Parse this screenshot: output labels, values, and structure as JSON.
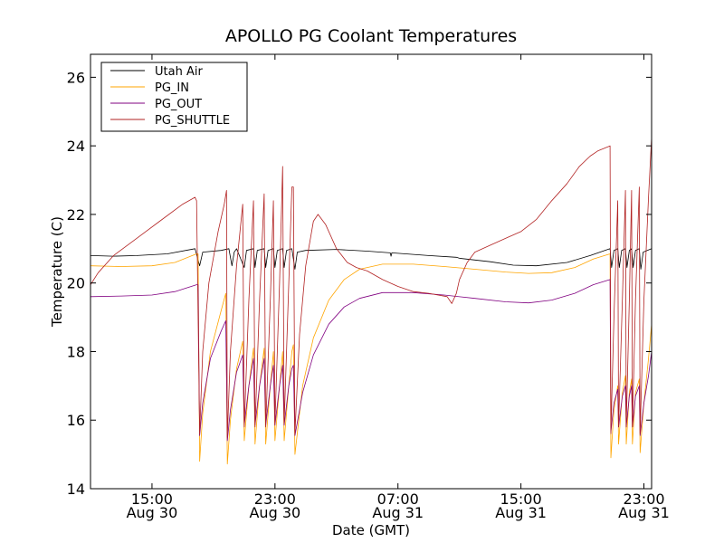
{
  "chart_data": {
    "type": "line",
    "title": "APOLLO PG Coolant Temperatures",
    "xlabel": "Date (GMT)",
    "ylabel": "Temperature (C)",
    "x_unit": "hours since Aug 30 00:00 GMT",
    "xlim": [
      11.0,
      47.5
    ],
    "ylim": [
      14,
      26.67
    ],
    "yticks": [
      14,
      16,
      18,
      20,
      22,
      24,
      26
    ],
    "xticks": [
      {
        "x": 15,
        "time": "15:00",
        "date": "Aug 30"
      },
      {
        "x": 23,
        "time": "23:00",
        "date": "Aug 30"
      },
      {
        "x": 31,
        "time": "07:00",
        "date": "Aug 31"
      },
      {
        "x": 39,
        "time": "15:00",
        "date": "Aug 31"
      },
      {
        "x": 47,
        "time": "23:00",
        "date": "Aug 31"
      }
    ],
    "legend_position": "top-left",
    "series": [
      {
        "name": "Utah Air",
        "color": "#000000",
        "points": [
          [
            11.0,
            20.8
          ],
          [
            12.5,
            20.78
          ],
          [
            14.0,
            20.8
          ],
          [
            16.0,
            20.85
          ],
          [
            17.8,
            21.0
          ],
          [
            18.1,
            20.5
          ],
          [
            18.3,
            20.9
          ],
          [
            19.5,
            20.95
          ],
          [
            20.0,
            21.0
          ],
          [
            20.2,
            20.5
          ],
          [
            20.35,
            20.9
          ],
          [
            20.5,
            21.0
          ],
          [
            21.0,
            20.45
          ],
          [
            21.15,
            20.95
          ],
          [
            21.6,
            21.0
          ],
          [
            21.7,
            20.45
          ],
          [
            21.85,
            20.95
          ],
          [
            22.3,
            21.0
          ],
          [
            22.4,
            20.45
          ],
          [
            22.55,
            20.95
          ],
          [
            22.9,
            21.0
          ],
          [
            23.0,
            20.45
          ],
          [
            23.15,
            20.95
          ],
          [
            23.5,
            21.0
          ],
          [
            23.6,
            20.45
          ],
          [
            23.75,
            20.95
          ],
          [
            24.1,
            21.0
          ],
          [
            24.3,
            20.4
          ],
          [
            24.45,
            20.9
          ],
          [
            25.0,
            20.95
          ],
          [
            27.0,
            20.98
          ],
          [
            29.0,
            20.93
          ],
          [
            30.5,
            20.88
          ],
          [
            30.55,
            20.78
          ],
          [
            30.6,
            20.88
          ],
          [
            33.0,
            20.8
          ],
          [
            34.8,
            20.75
          ],
          [
            35.0,
            20.72
          ],
          [
            37.0,
            20.62
          ],
          [
            38.5,
            20.52
          ],
          [
            40.0,
            20.5
          ],
          [
            42.0,
            20.6
          ],
          [
            43.5,
            20.8
          ],
          [
            44.8,
            21.0
          ],
          [
            44.9,
            20.45
          ],
          [
            45.05,
            20.95
          ],
          [
            45.3,
            21.0
          ],
          [
            45.4,
            20.45
          ],
          [
            45.55,
            20.95
          ],
          [
            45.8,
            21.0
          ],
          [
            45.9,
            20.45
          ],
          [
            46.05,
            20.95
          ],
          [
            46.2,
            21.0
          ],
          [
            46.3,
            20.45
          ],
          [
            46.45,
            20.95
          ],
          [
            46.7,
            21.0
          ],
          [
            46.8,
            20.4
          ],
          [
            46.95,
            20.9
          ],
          [
            47.5,
            21.0
          ]
        ]
      },
      {
        "name": "PG_IN",
        "color": "#FFA500",
        "points": [
          [
            11.0,
            20.5
          ],
          [
            13.0,
            20.48
          ],
          [
            15.0,
            20.5
          ],
          [
            16.5,
            20.6
          ],
          [
            17.9,
            20.85
          ],
          [
            18.0,
            20.85
          ],
          [
            18.1,
            14.8
          ],
          [
            18.3,
            16.2
          ],
          [
            18.8,
            18.0
          ],
          [
            19.5,
            19.2
          ],
          [
            19.8,
            19.7
          ],
          [
            19.9,
            14.72
          ],
          [
            20.1,
            16.0
          ],
          [
            20.5,
            17.5
          ],
          [
            20.9,
            18.3
          ],
          [
            21.0,
            15.4
          ],
          [
            21.3,
            17.0
          ],
          [
            21.6,
            18.1
          ],
          [
            21.7,
            15.3
          ],
          [
            22.0,
            17.0
          ],
          [
            22.3,
            18.1
          ],
          [
            22.4,
            15.3
          ],
          [
            22.7,
            17.0
          ],
          [
            22.9,
            18.0
          ],
          [
            23.0,
            15.4
          ],
          [
            23.3,
            17.0
          ],
          [
            23.5,
            18.0
          ],
          [
            23.6,
            15.4
          ],
          [
            23.9,
            17.0
          ],
          [
            24.1,
            18.0
          ],
          [
            24.2,
            18.2
          ],
          [
            24.3,
            15.0
          ],
          [
            24.8,
            17.0
          ],
          [
            25.5,
            18.4
          ],
          [
            26.5,
            19.5
          ],
          [
            27.5,
            20.1
          ],
          [
            28.5,
            20.4
          ],
          [
            30.0,
            20.55
          ],
          [
            32.0,
            20.55
          ],
          [
            34.0,
            20.48
          ],
          [
            36.0,
            20.4
          ],
          [
            38.0,
            20.32
          ],
          [
            39.5,
            20.28
          ],
          [
            41.0,
            20.3
          ],
          [
            42.5,
            20.45
          ],
          [
            43.7,
            20.7
          ],
          [
            44.8,
            20.85
          ],
          [
            44.85,
            14.9
          ],
          [
            45.05,
            16.3
          ],
          [
            45.3,
            17.0
          ],
          [
            45.35,
            15.3
          ],
          [
            45.6,
            16.8
          ],
          [
            45.8,
            17.3
          ],
          [
            45.85,
            15.3
          ],
          [
            46.05,
            16.8
          ],
          [
            46.2,
            17.2
          ],
          [
            46.25,
            15.3
          ],
          [
            46.45,
            16.8
          ],
          [
            46.7,
            17.2
          ],
          [
            46.75,
            15.05
          ],
          [
            47.0,
            16.5
          ],
          [
            47.3,
            17.8
          ],
          [
            47.5,
            18.8
          ]
        ]
      },
      {
        "name": "PG_OUT",
        "color": "#800080",
        "points": [
          [
            11.0,
            19.6
          ],
          [
            13.0,
            19.62
          ],
          [
            15.0,
            19.65
          ],
          [
            16.5,
            19.75
          ],
          [
            17.9,
            19.95
          ],
          [
            18.0,
            19.95
          ],
          [
            18.1,
            15.55
          ],
          [
            18.3,
            16.5
          ],
          [
            18.8,
            17.8
          ],
          [
            19.5,
            18.6
          ],
          [
            19.8,
            18.9
          ],
          [
            19.9,
            15.4
          ],
          [
            20.1,
            16.3
          ],
          [
            20.5,
            17.4
          ],
          [
            20.9,
            17.9
          ],
          [
            21.0,
            15.85
          ],
          [
            21.3,
            17.0
          ],
          [
            21.6,
            17.8
          ],
          [
            21.7,
            15.85
          ],
          [
            22.0,
            17.0
          ],
          [
            22.3,
            17.8
          ],
          [
            22.4,
            15.85
          ],
          [
            22.7,
            17.0
          ],
          [
            22.9,
            17.6
          ],
          [
            23.0,
            15.85
          ],
          [
            23.3,
            17.0
          ],
          [
            23.5,
            17.6
          ],
          [
            23.6,
            15.85
          ],
          [
            23.9,
            17.0
          ],
          [
            24.1,
            17.5
          ],
          [
            24.2,
            17.6
          ],
          [
            24.3,
            15.55
          ],
          [
            24.8,
            16.8
          ],
          [
            25.5,
            17.9
          ],
          [
            26.5,
            18.8
          ],
          [
            27.5,
            19.3
          ],
          [
            28.5,
            19.55
          ],
          [
            30.0,
            19.72
          ],
          [
            32.0,
            19.72
          ],
          [
            34.0,
            19.65
          ],
          [
            36.0,
            19.55
          ],
          [
            38.0,
            19.45
          ],
          [
            39.5,
            19.42
          ],
          [
            41.0,
            19.5
          ],
          [
            42.5,
            19.7
          ],
          [
            43.7,
            19.95
          ],
          [
            44.8,
            20.1
          ],
          [
            44.85,
            15.65
          ],
          [
            45.05,
            16.5
          ],
          [
            45.3,
            16.9
          ],
          [
            45.35,
            15.8
          ],
          [
            45.6,
            16.7
          ],
          [
            45.8,
            17.0
          ],
          [
            45.85,
            15.8
          ],
          [
            46.05,
            16.7
          ],
          [
            46.2,
            17.0
          ],
          [
            46.25,
            15.8
          ],
          [
            46.45,
            16.7
          ],
          [
            46.7,
            17.0
          ],
          [
            46.75,
            15.55
          ],
          [
            47.0,
            16.5
          ],
          [
            47.3,
            17.3
          ],
          [
            47.5,
            18.0
          ]
        ]
      },
      {
        "name": "PG_SHUTTLE",
        "color": "#B22222",
        "points": [
          [
            11.0,
            19.95
          ],
          [
            11.5,
            20.3
          ],
          [
            12.5,
            20.8
          ],
          [
            14.0,
            21.3
          ],
          [
            15.5,
            21.8
          ],
          [
            17.0,
            22.3
          ],
          [
            17.8,
            22.5
          ],
          [
            17.9,
            22.4
          ],
          [
            18.1,
            15.6
          ],
          [
            18.3,
            18.0
          ],
          [
            18.7,
            20.0
          ],
          [
            19.3,
            21.5
          ],
          [
            19.7,
            22.3
          ],
          [
            19.85,
            22.7
          ],
          [
            19.9,
            15.5
          ],
          [
            20.1,
            18.0
          ],
          [
            20.5,
            20.5
          ],
          [
            20.9,
            22.3
          ],
          [
            21.0,
            15.8
          ],
          [
            21.3,
            19.5
          ],
          [
            21.6,
            22.4
          ],
          [
            21.7,
            15.8
          ],
          [
            22.0,
            19.5
          ],
          [
            22.3,
            22.6
          ],
          [
            22.4,
            15.8
          ],
          [
            22.7,
            19.5
          ],
          [
            22.9,
            22.4
          ],
          [
            23.0,
            15.9
          ],
          [
            23.3,
            20.0
          ],
          [
            23.5,
            23.4
          ],
          [
            23.6,
            15.9
          ],
          [
            23.9,
            20.0
          ],
          [
            24.1,
            22.8
          ],
          [
            24.2,
            22.8
          ],
          [
            24.3,
            15.6
          ],
          [
            24.6,
            18.5
          ],
          [
            25.0,
            20.5
          ],
          [
            25.5,
            21.8
          ],
          [
            25.8,
            22.0
          ],
          [
            26.3,
            21.7
          ],
          [
            27.0,
            21.0
          ],
          [
            27.7,
            20.6
          ],
          [
            28.3,
            20.45
          ],
          [
            29.0,
            20.35
          ],
          [
            30.0,
            20.1
          ],
          [
            31.0,
            19.9
          ],
          [
            32.0,
            19.75
          ],
          [
            33.0,
            19.7
          ],
          [
            34.2,
            19.6
          ],
          [
            34.5,
            19.4
          ],
          [
            34.8,
            19.7
          ],
          [
            35.0,
            20.1
          ],
          [
            35.5,
            20.6
          ],
          [
            36.0,
            20.9
          ],
          [
            37.0,
            21.1
          ],
          [
            38.0,
            21.3
          ],
          [
            39.0,
            21.5
          ],
          [
            40.0,
            21.85
          ],
          [
            41.0,
            22.4
          ],
          [
            42.0,
            22.9
          ],
          [
            42.8,
            23.4
          ],
          [
            43.5,
            23.7
          ],
          [
            44.0,
            23.85
          ],
          [
            44.8,
            24.0
          ],
          [
            44.85,
            15.6
          ],
          [
            45.05,
            19.0
          ],
          [
            45.3,
            22.4
          ],
          [
            45.35,
            15.8
          ],
          [
            45.6,
            19.5
          ],
          [
            45.8,
            22.7
          ],
          [
            45.85,
            15.8
          ],
          [
            46.05,
            19.5
          ],
          [
            46.2,
            22.7
          ],
          [
            46.25,
            15.8
          ],
          [
            46.45,
            19.5
          ],
          [
            46.7,
            22.8
          ],
          [
            46.75,
            15.6
          ],
          [
            47.0,
            19.5
          ],
          [
            47.3,
            22.5
          ],
          [
            47.5,
            24.25
          ]
        ]
      }
    ]
  }
}
